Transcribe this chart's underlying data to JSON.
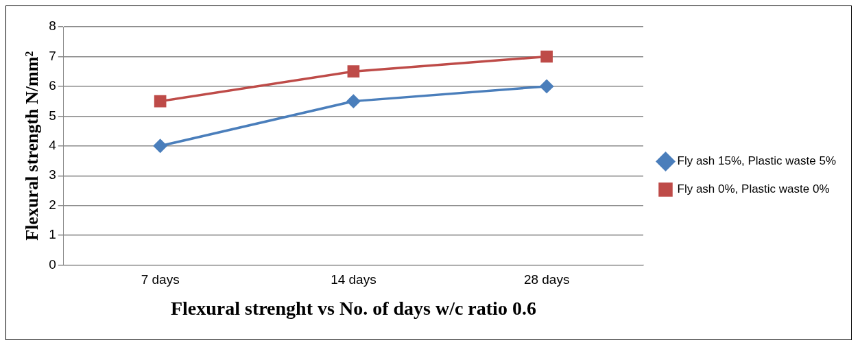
{
  "chart_data": {
    "type": "line",
    "xlabel": "Flexural strenght vs No. of days w/c ratio 0.6",
    "ylabel": "Flexural strength N/mm²",
    "categories": [
      "7 days",
      "14 days",
      "28 days"
    ],
    "series": [
      {
        "name": "Fly ash 15%, Plastic waste 5%",
        "color": "#4a7ebb",
        "values": [
          4,
          5.5,
          6
        ],
        "marker": "diamond"
      },
      {
        "name": "Fly ash 0%, Plastic waste 0%",
        "color": "#be4b48",
        "values": [
          5.5,
          6.5,
          7
        ],
        "marker": "square"
      }
    ],
    "ylim": [
      0,
      8
    ],
    "yticks": [
      0,
      1,
      2,
      3,
      4,
      5,
      6,
      7,
      8
    ],
    "grid": "y",
    "legend": "right",
    "line_style": "solid"
  }
}
